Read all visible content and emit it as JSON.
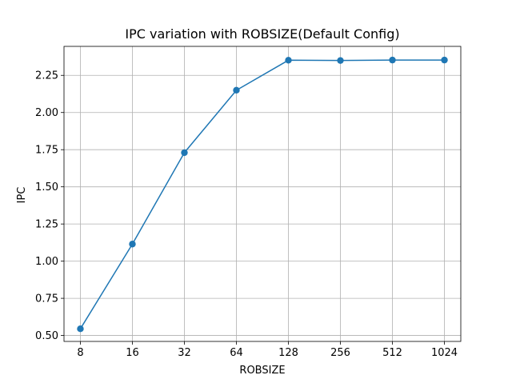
{
  "chart_data": {
    "type": "line",
    "title": "IPC variation with ROBSIZE(Default Config)",
    "xlabel": "ROBSIZE",
    "ylabel": "IPC",
    "categories": [
      "8",
      "16",
      "32",
      "64",
      "128",
      "256",
      "512",
      "1024"
    ],
    "series": [
      {
        "values": [
          0.545,
          1.115,
          1.73,
          2.15,
          2.352,
          2.35,
          2.353,
          2.353
        ],
        "color": "#1f77b4",
        "marker": "circle"
      }
    ],
    "yticks": [
      "0.50",
      "0.75",
      "1.00",
      "1.25",
      "1.50",
      "1.75",
      "2.00",
      "2.25"
    ],
    "ylim": [
      0.46,
      2.445
    ],
    "grid": true,
    "legend": "none"
  }
}
